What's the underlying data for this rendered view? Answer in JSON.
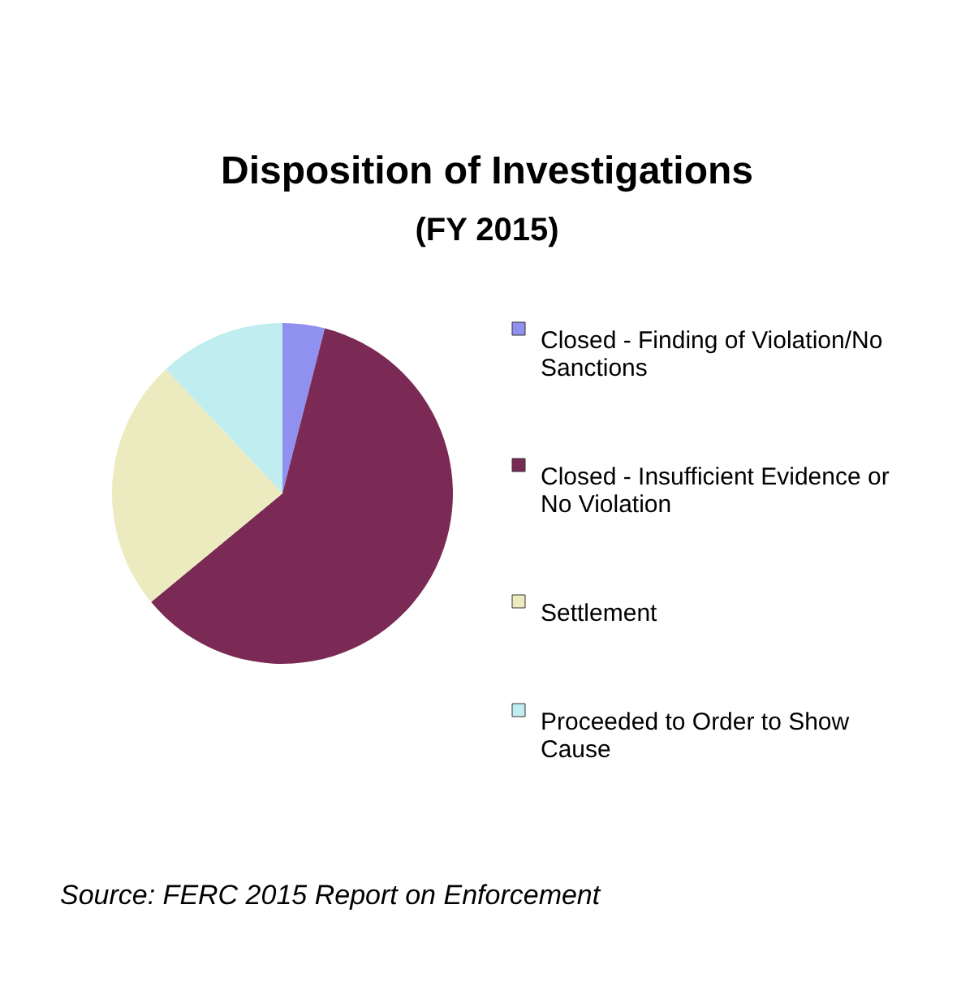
{
  "chart_data": {
    "type": "pie",
    "title": "Disposition of Investigations",
    "subtitle": "(FY 2015)",
    "categories": [
      "Closed - Finding of Violation/No Sanctions",
      "Closed - Insufficient Evidence or No Violation",
      "Settlement",
      "Proceeded to Order to Show Cause"
    ],
    "values": [
      4,
      60,
      24,
      12
    ],
    "colors": [
      "#9090f0",
      "#7a2a55",
      "#ecebbf",
      "#c0eef0"
    ],
    "legend": "right",
    "annotations": [
      "Source: FERC 2015 Report on Enforcement"
    ]
  }
}
